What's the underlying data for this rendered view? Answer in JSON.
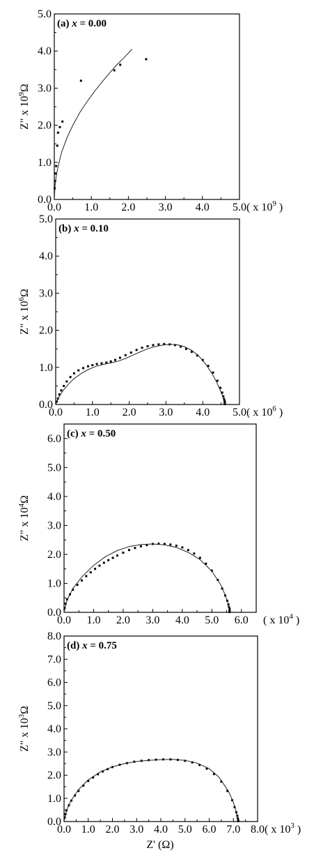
{
  "figure": {
    "x_axis_label": "Z' (Ω)"
  },
  "chart_data": [
    {
      "type": "scatter",
      "panel_label": "(a)",
      "x_var": "x",
      "x_value": "= 0.00",
      "y_label": "Z\" x 10",
      "y_exp": "9",
      "y_unit": "Ω",
      "x_unit_prefix": "( x 10",
      "x_unit_exp": "9",
      "x_unit_suffix": " )",
      "xlim": [
        0,
        5
      ],
      "ylim": [
        0,
        5
      ],
      "x_ticks": [
        "0.0",
        "1.0",
        "2.0",
        "3.0",
        "4.0",
        "5.0"
      ],
      "y_ticks": [
        "0.0",
        "1.0",
        "2.0",
        "3.0",
        "4.0",
        "5.0"
      ],
      "series": [
        {
          "kind": "points",
          "x": [
            0.01,
            0.02,
            0.03,
            0.05,
            0.08,
            0.1,
            0.15,
            0.22,
            0.72,
            1.62,
            1.78,
            2.48
          ],
          "y": [
            0.3,
            0.5,
            0.7,
            0.9,
            1.45,
            1.8,
            1.95,
            2.1,
            3.2,
            3.48,
            3.63,
            3.78
          ]
        },
        {
          "kind": "line",
          "x": [
            0.0,
            0.02,
            0.05,
            0.1,
            0.2,
            0.35,
            0.5,
            0.7,
            0.9,
            1.1,
            1.3,
            1.5,
            1.7,
            1.9,
            2.1
          ],
          "y": [
            0.0,
            0.38,
            0.62,
            0.88,
            1.28,
            1.68,
            2.0,
            2.36,
            2.66,
            2.93,
            3.18,
            3.42,
            3.64,
            3.84,
            4.05
          ]
        }
      ]
    },
    {
      "type": "scatter",
      "panel_label": "(b)",
      "x_var": "x",
      "x_value": "= 0.10",
      "y_label": "Z\" x 10",
      "y_exp": "6",
      "y_unit": "Ω",
      "x_unit_prefix": "( x 10",
      "x_unit_exp": "6",
      "x_unit_suffix": " )",
      "xlim": [
        0,
        5
      ],
      "ylim": [
        0,
        5
      ],
      "x_ticks": [
        "0.0",
        "1.0",
        "2.0",
        "3.0",
        "4.0",
        "5.0"
      ],
      "y_ticks": [
        "0.0",
        "1.0",
        "2.0",
        "3.0",
        "4.0",
        "5.0"
      ],
      "series": [
        {
          "kind": "points",
          "x": [
            0.03,
            0.06,
            0.1,
            0.15,
            0.22,
            0.3,
            0.4,
            0.5,
            0.62,
            0.75,
            0.88,
            1.0,
            1.12,
            1.25,
            1.38,
            1.5,
            1.62,
            1.75,
            1.9,
            2.05,
            2.2,
            2.35,
            2.5,
            2.65,
            2.8,
            2.95,
            3.1,
            3.25,
            3.4,
            3.55,
            3.7,
            3.85,
            4.0,
            4.15,
            4.28,
            4.4,
            4.48,
            4.53,
            4.56,
            4.58,
            4.59,
            4.6,
            4.6,
            4.6,
            4.6
          ],
          "y": [
            0.08,
            0.16,
            0.27,
            0.38,
            0.5,
            0.62,
            0.74,
            0.84,
            0.92,
            0.98,
            1.03,
            1.06,
            1.09,
            1.11,
            1.13,
            1.16,
            1.2,
            1.26,
            1.33,
            1.4,
            1.47,
            1.53,
            1.57,
            1.6,
            1.62,
            1.63,
            1.62,
            1.6,
            1.56,
            1.5,
            1.42,
            1.32,
            1.2,
            1.04,
            0.86,
            0.64,
            0.45,
            0.32,
            0.22,
            0.15,
            0.1,
            0.07,
            0.05,
            0.03,
            0.01
          ]
        },
        {
          "kind": "line",
          "x": [
            0.0,
            0.05,
            0.1,
            0.2,
            0.35,
            0.5,
            0.7,
            0.9,
            1.1,
            1.3,
            1.5,
            1.7,
            1.9,
            2.1,
            2.3,
            2.5,
            2.7,
            2.9,
            3.1,
            3.3,
            3.5,
            3.7,
            3.9,
            4.1,
            4.25,
            4.38,
            4.47,
            4.53,
            4.57,
            4.59,
            4.6
          ],
          "y": [
            0.0,
            0.12,
            0.22,
            0.38,
            0.55,
            0.7,
            0.84,
            0.95,
            1.03,
            1.08,
            1.12,
            1.17,
            1.24,
            1.33,
            1.42,
            1.5,
            1.56,
            1.6,
            1.62,
            1.61,
            1.56,
            1.46,
            1.3,
            1.06,
            0.84,
            0.6,
            0.4,
            0.25,
            0.13,
            0.05,
            0.0
          ]
        }
      ]
    },
    {
      "type": "scatter",
      "panel_label": "(c)",
      "x_var": "x",
      "x_value": "= 0.50",
      "y_label": "Z\" x 10",
      "y_exp": "4",
      "y_unit": "Ω",
      "x_unit_prefix": "( x 10",
      "x_unit_exp": "4",
      "x_unit_suffix": " )",
      "xlim": [
        0,
        6.5
      ],
      "ylim": [
        0,
        6.5
      ],
      "x_ticks": [
        "0.0",
        "1.0",
        "2.0",
        "3.0",
        "4.0",
        "5.0",
        "6.0"
      ],
      "y_ticks": [
        "0.0",
        "1.0",
        "2.0",
        "3.0",
        "4.0",
        "5.0",
        "6.0"
      ],
      "series": [
        {
          "kind": "points",
          "x": [
            0.02,
            0.05,
            0.1,
            0.2,
            0.3,
            0.45,
            0.6,
            0.75,
            0.9,
            1.05,
            1.2,
            1.35,
            1.5,
            1.65,
            1.8,
            2.0,
            2.2,
            2.4,
            2.6,
            2.8,
            3.0,
            3.2,
            3.4,
            3.6,
            3.8,
            4.0,
            4.2,
            4.4,
            4.6,
            4.8,
            5.0,
            5.2,
            5.35,
            5.45,
            5.52,
            5.56,
            5.58,
            5.6,
            5.6,
            5.6,
            5.6
          ],
          "y": [
            0.15,
            0.3,
            0.45,
            0.62,
            0.78,
            0.95,
            1.1,
            1.25,
            1.38,
            1.5,
            1.61,
            1.71,
            1.8,
            1.88,
            1.96,
            2.06,
            2.15,
            2.22,
            2.28,
            2.32,
            2.36,
            2.37,
            2.36,
            2.34,
            2.3,
            2.24,
            2.15,
            2.03,
            1.88,
            1.68,
            1.44,
            1.12,
            0.82,
            0.58,
            0.4,
            0.27,
            0.18,
            0.12,
            0.07,
            0.04,
            0.01
          ]
        },
        {
          "kind": "line",
          "x": [
            0.0,
            0.1,
            0.3,
            0.6,
            1.0,
            1.4,
            1.8,
            2.2,
            2.6,
            3.0,
            3.4,
            3.8,
            4.2,
            4.6,
            5.0,
            5.3,
            5.45,
            5.55,
            5.6
          ],
          "y": [
            0.0,
            0.42,
            0.82,
            1.22,
            1.62,
            1.92,
            2.13,
            2.27,
            2.34,
            2.36,
            2.33,
            2.24,
            2.07,
            1.82,
            1.42,
            0.95,
            0.6,
            0.3,
            0.0
          ]
        }
      ]
    },
    {
      "type": "scatter",
      "panel_label": "(d)",
      "x_var": "x",
      "x_value": "= 0.75",
      "y_label": "Z\" x 10",
      "y_exp": "3",
      "y_unit": "Ω",
      "x_unit_prefix": "( x 10",
      "x_unit_exp": "3",
      "x_unit_suffix": " )",
      "xlim": [
        0,
        8
      ],
      "ylim": [
        0,
        8
      ],
      "x_ticks": [
        "0.0",
        "1.0",
        "2.0",
        "3.0",
        "4.0",
        "5.0",
        "6.0",
        "7.0",
        "8.0"
      ],
      "y_ticks": [
        "0.0",
        "1.0",
        "2.0",
        "3.0",
        "4.0",
        "5.0",
        "6.0",
        "7.0",
        "8.0"
      ],
      "series": [
        {
          "kind": "points",
          "x": [
            0.03,
            0.06,
            0.1,
            0.2,
            0.3,
            0.45,
            0.6,
            0.8,
            1.0,
            1.2,
            1.4,
            1.6,
            1.8,
            2.0,
            2.3,
            2.6,
            2.9,
            3.2,
            3.5,
            3.8,
            4.1,
            4.4,
            4.7,
            5.0,
            5.3,
            5.6,
            5.9,
            6.2,
            6.5,
            6.75,
            6.95,
            7.05,
            7.12,
            7.16,
            7.18,
            7.2,
            7.2
          ],
          "y": [
            0.18,
            0.32,
            0.48,
            0.7,
            0.9,
            1.12,
            1.32,
            1.55,
            1.75,
            1.9,
            2.04,
            2.16,
            2.26,
            2.35,
            2.45,
            2.52,
            2.58,
            2.62,
            2.65,
            2.67,
            2.68,
            2.68,
            2.66,
            2.62,
            2.55,
            2.44,
            2.28,
            2.05,
            1.72,
            1.32,
            0.92,
            0.62,
            0.4,
            0.25,
            0.14,
            0.06,
            0.02
          ]
        },
        {
          "kind": "line",
          "x": [
            0.0,
            0.1,
            0.3,
            0.6,
            1.0,
            1.5,
            2.0,
            2.5,
            3.0,
            3.5,
            4.0,
            4.5,
            5.0,
            5.5,
            6.0,
            6.4,
            6.8,
            7.0,
            7.1,
            7.2
          ],
          "y": [
            0.0,
            0.48,
            0.92,
            1.38,
            1.8,
            2.14,
            2.36,
            2.5,
            2.59,
            2.64,
            2.67,
            2.68,
            2.64,
            2.52,
            2.28,
            1.92,
            1.3,
            0.82,
            0.48,
            0.0
          ]
        }
      ]
    }
  ]
}
